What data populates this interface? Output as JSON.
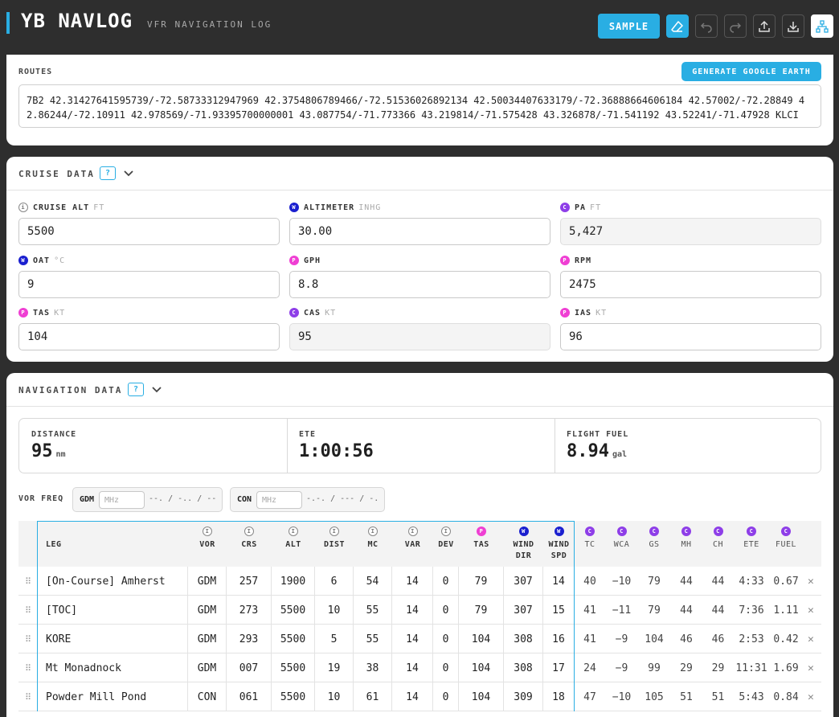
{
  "header": {
    "title": "YB NAVLOG",
    "subtitle": "VFR NAVIGATION LOG",
    "sample_label": "SAMPLE"
  },
  "routes": {
    "label": "ROUTES",
    "google_earth_label": "GENERATE GOOGLE EARTH",
    "value": "7B2 42.31427641595739/-72.58733312947969 42.3754806789466/-72.51536026892134 42.50034407633179/-72.36888664606184 42.57002/-72.28849 42.86244/-72.10911 42.978569/-71.93395700000001 43.087754/-71.773366 43.219814/-71.575428 43.326878/-71.541192 43.52241/-71.47928 KLCI"
  },
  "cruise": {
    "title": "CRUISE DATA",
    "help": "?",
    "fields": [
      {
        "badge": "i",
        "badge_text": "i",
        "label": "CRUISE ALT",
        "unit": "FT",
        "value": "5500",
        "computed": false
      },
      {
        "badge": "w",
        "badge_text": "W",
        "label": "ALTIMETER",
        "unit": "INHG",
        "value": "30.00",
        "computed": false
      },
      {
        "badge": "c",
        "badge_text": "C",
        "label": "PA",
        "unit": "FT",
        "value": "5,427",
        "computed": true
      },
      {
        "badge": "w",
        "badge_text": "W",
        "label": "OAT",
        "unit": "°C",
        "value": "9",
        "computed": false
      },
      {
        "badge": "p",
        "badge_text": "P",
        "label": "GPH",
        "unit": "",
        "value": "8.8",
        "computed": false
      },
      {
        "badge": "p",
        "badge_text": "P",
        "label": "RPM",
        "unit": "",
        "value": "2475",
        "computed": false
      },
      {
        "badge": "p",
        "badge_text": "P",
        "label": "TAS",
        "unit": "KT",
        "value": "104",
        "computed": false
      },
      {
        "badge": "c",
        "badge_text": "C",
        "label": "CAS",
        "unit": "KT",
        "value": "95",
        "computed": true
      },
      {
        "badge": "p",
        "badge_text": "P",
        "label": "IAS",
        "unit": "KT",
        "value": "96",
        "computed": false
      }
    ]
  },
  "nav": {
    "title": "NAVIGATION DATA",
    "help": "?",
    "stats": [
      {
        "label": "DISTANCE",
        "value": "95",
        "unit": "nm"
      },
      {
        "label": "ETE",
        "value": "1:00:56",
        "unit": ""
      },
      {
        "label": "FLIGHT FUEL",
        "value": "8.94",
        "unit": "gal"
      }
    ],
    "vor_label": "VOR FREQ",
    "vors": [
      {
        "name": "GDM",
        "placeholder": "MHz",
        "readout": "--. / -.. / --"
      },
      {
        "name": "CON",
        "placeholder": "MHz",
        "readout": "-.-. / --- / -."
      }
    ],
    "columns": [
      {
        "key": "leg",
        "label": "LEG",
        "badge": ""
      },
      {
        "key": "vor",
        "label": "VOR",
        "badge": "i"
      },
      {
        "key": "crs",
        "label": "CRS",
        "badge": "i"
      },
      {
        "key": "alt",
        "label": "ALT",
        "badge": "i"
      },
      {
        "key": "dist",
        "label": "DIST",
        "badge": "i"
      },
      {
        "key": "mc",
        "label": "MC",
        "badge": "i"
      },
      {
        "key": "var",
        "label": "VAR",
        "badge": "i"
      },
      {
        "key": "dev",
        "label": "DEV",
        "badge": "i"
      },
      {
        "key": "tas",
        "label": "TAS",
        "badge": "p"
      },
      {
        "key": "wdir",
        "label": "WIND\nDIR",
        "badge": "w"
      },
      {
        "key": "wspd",
        "label": "WIND\nSPD",
        "badge": "w"
      },
      {
        "key": "tc",
        "label": "TC",
        "badge": "c"
      },
      {
        "key": "wca",
        "label": "WCA",
        "badge": "c"
      },
      {
        "key": "gs",
        "label": "GS",
        "badge": "c"
      },
      {
        "key": "mh",
        "label": "MH",
        "badge": "c"
      },
      {
        "key": "ch",
        "label": "CH",
        "badge": "c"
      },
      {
        "key": "ete",
        "label": "ETE",
        "badge": "c"
      },
      {
        "key": "fuel",
        "label": "FUEL",
        "badge": "c"
      }
    ],
    "rows": [
      [
        "[On-Course] Amherst",
        "GDM",
        "257",
        "1900",
        "6",
        "54",
        "14",
        "0",
        "79",
        "307",
        "14",
        "40",
        "−10",
        "79",
        "44",
        "44",
        "4:33",
        "0.67"
      ],
      [
        "[TOC]",
        "GDM",
        "273",
        "5500",
        "10",
        "55",
        "14",
        "0",
        "79",
        "307",
        "15",
        "41",
        "−11",
        "79",
        "44",
        "44",
        "7:36",
        "1.11"
      ],
      [
        "KORE",
        "GDM",
        "293",
        "5500",
        "5",
        "55",
        "14",
        "0",
        "104",
        "308",
        "16",
        "41",
        "−9",
        "104",
        "46",
        "46",
        "2:53",
        "0.42"
      ],
      [
        "Mt Monadnock",
        "GDM",
        "007",
        "5500",
        "19",
        "38",
        "14",
        "0",
        "104",
        "308",
        "17",
        "24",
        "−9",
        "99",
        "29",
        "29",
        "11:31",
        "1.69"
      ],
      [
        "Powder Mill Pond",
        "CON",
        "061",
        "5500",
        "10",
        "61",
        "14",
        "0",
        "104",
        "309",
        "18",
        "47",
        "−10",
        "105",
        "51",
        "51",
        "5:43",
        "0.84"
      ]
    ]
  },
  "colors": {
    "accent": "#29aee3",
    "info": "#888888",
    "weather": "#1a1fcf",
    "computed": "#8e3ee8",
    "performance": "#ef3fd3"
  },
  "icons": [
    "eraser-icon",
    "undo-icon",
    "redo-icon",
    "upload-icon",
    "download-icon",
    "sitemap-icon",
    "chevron-down-icon",
    "drag-handle-icon",
    "delete-x-icon"
  ]
}
